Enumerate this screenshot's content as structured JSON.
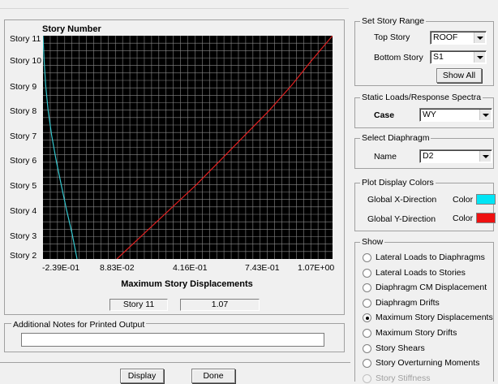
{
  "plot": {
    "title": "Story Number",
    "stories": [
      "Story 11",
      "Story 10",
      "Story 9",
      "Story 8",
      "Story 7",
      "Story 6",
      "Story 5",
      "Story 4",
      "Story 3",
      "Story 2"
    ],
    "x_ticks": [
      "-2.39E-01",
      "8.83E-02",
      "4.16E-01",
      "7.43E-01",
      "1.07E+00"
    ],
    "x_axis_title": "Maximum Story Displacements",
    "readout_story": "Story 11",
    "readout_value": "1.07",
    "background_color": "#000000",
    "grid_color": "#8a8a8a",
    "x_direction_color": "#35c8cf",
    "y_direction_color": "#e02020"
  },
  "chart_data": {
    "type": "line",
    "title": "Story Number",
    "xlabel": "Maximum Story Displacements",
    "ylabel": "",
    "x_ticks": [
      -0.239,
      0.0883,
      0.416,
      0.743,
      1.07
    ],
    "xlim": [
      -0.239,
      1.07
    ],
    "y_categories": [
      "Story 2",
      "Story 3",
      "Story 4",
      "Story 5",
      "Story 6",
      "Story 7",
      "Story 8",
      "Story 9",
      "Story 10",
      "Story 11"
    ],
    "series": [
      {
        "color": "#35c8cf",
        "y_category_index": [
          0,
          1,
          2,
          3,
          4,
          5,
          6,
          7,
          8,
          9
        ],
        "x": [
          -0.085,
          -0.107,
          -0.133,
          -0.157,
          -0.18,
          -0.2,
          -0.216,
          -0.227,
          -0.234,
          -0.239
        ]
      },
      {
        "color": "#e02020",
        "y_category_index": [
          0,
          1,
          2,
          3,
          4,
          5,
          6,
          7,
          8,
          9
        ],
        "x": [
          0.095,
          0.215,
          0.335,
          0.455,
          0.565,
          0.675,
          0.785,
          0.885,
          0.975,
          1.07
        ]
      }
    ],
    "grid": true
  },
  "notes": {
    "label": "Additional Notes for Printed Output",
    "value": ""
  },
  "buttons": {
    "display": "Display",
    "done": "Done"
  },
  "story_range": {
    "title": "Set Story Range",
    "top_label": "Top Story",
    "top_value": "ROOF",
    "bottom_label": "Bottom Story",
    "bottom_value": "S1",
    "show_all": "Show All"
  },
  "loads": {
    "title": "Static Loads/Response Spectra",
    "case_label": "Case",
    "case_value": "WY"
  },
  "diaphragm": {
    "title": "Select  Diaphragm",
    "name_label": "Name",
    "name_value": "D2"
  },
  "colors": {
    "title": "Plot Display Colors",
    "x_label": "Global X-Direction",
    "y_label": "Global Y-Direction",
    "color_label": "Color",
    "x_color": "#00e5f5",
    "y_color": "#ee1111"
  },
  "show": {
    "title": "Show",
    "options": [
      "Lateral Loads to Diaphragms",
      "Lateral Loads to Stories",
      "Diaphragm CM Displacement",
      "Diaphragm Drifts",
      "Maximum Story Displacements",
      "Maximum Story Drifts",
      "Story Shears",
      "Story Overturning Moments",
      "Story Stiffness"
    ],
    "selected": "Maximum Story Displacements"
  }
}
